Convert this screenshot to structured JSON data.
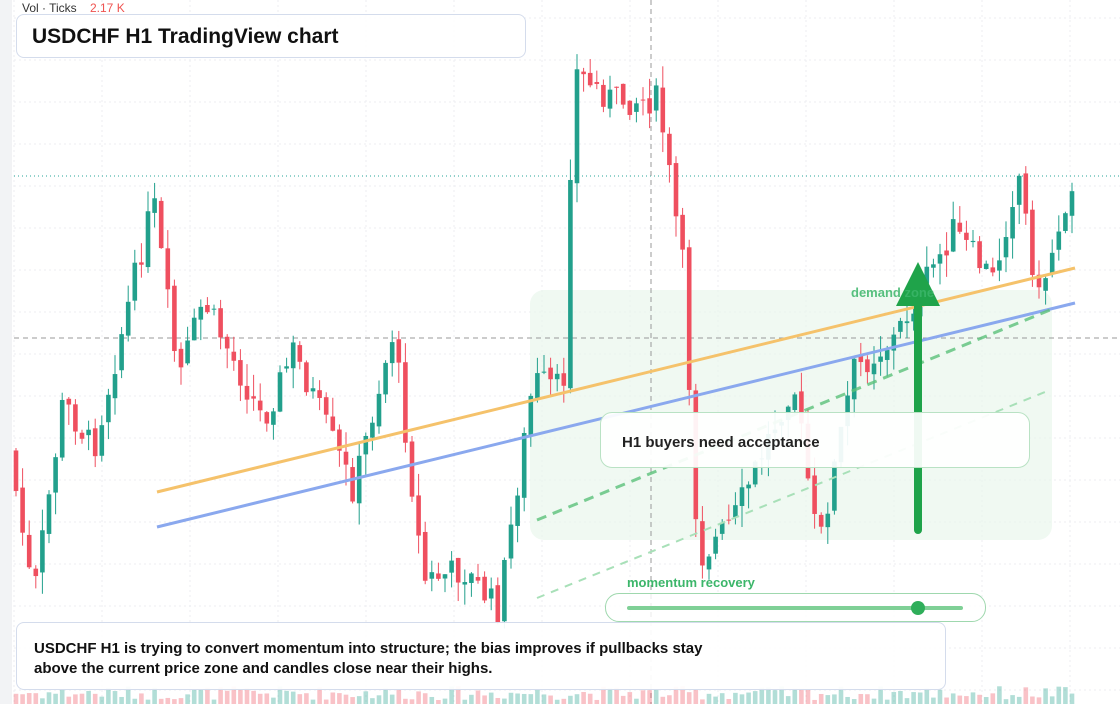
{
  "header": {
    "volume_label": "Vol · Ticks",
    "volume_value": "2.17 K",
    "title": "USDCHF H1 TradingView chart"
  },
  "annotations": {
    "zone": "demand zone",
    "callout": "H1 buyers need acceptance",
    "slider": "momentum recovery"
  },
  "footer": {
    "text": "USDCHF H1 is trying to convert momentum into structure; the bias improves if pullbacks stay above the current price zone and candles close near their highs."
  }
}
